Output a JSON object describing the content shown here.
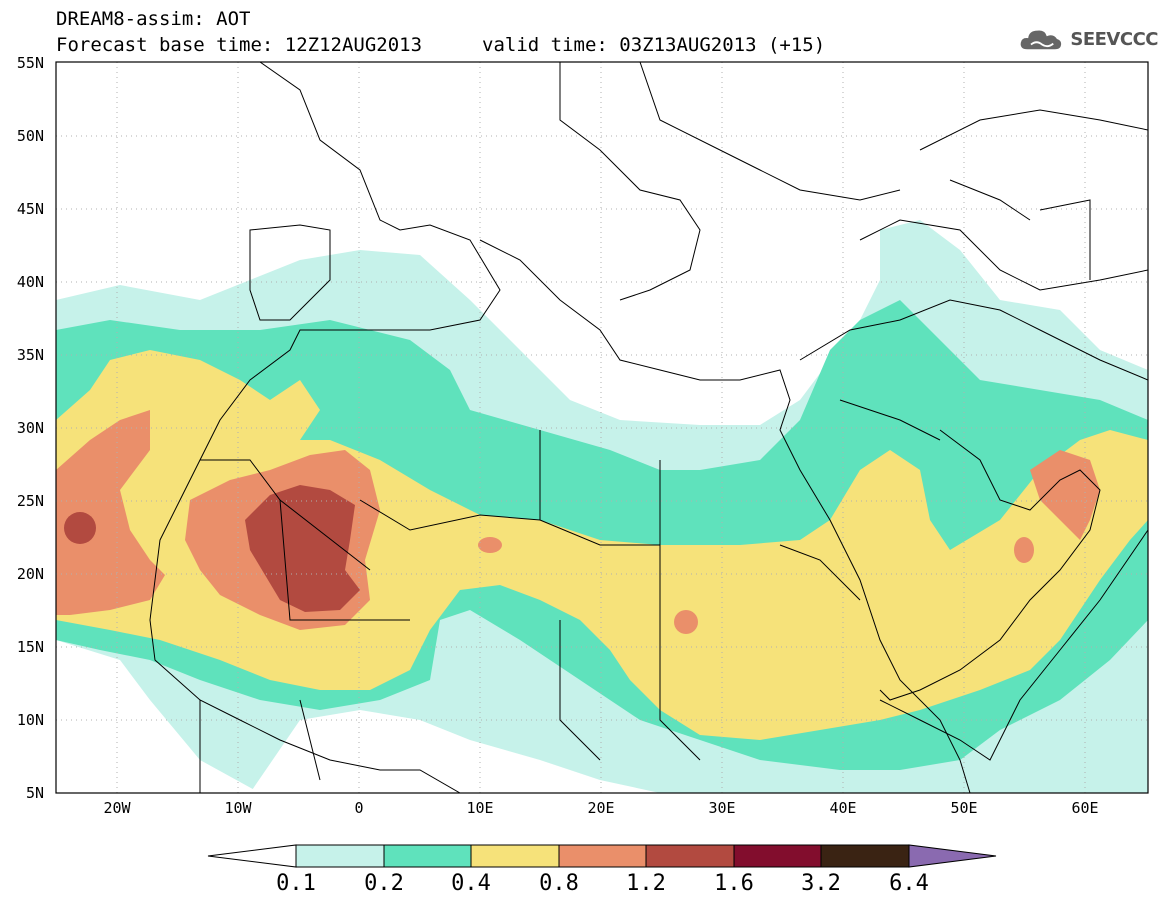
{
  "header": {
    "title": "DREAM8-assim: AOT",
    "base_time": "Forecast base time: 12Z12AUG2013",
    "valid_time": "valid time: 03Z13AUG2013 (+15)"
  },
  "logo": {
    "text": "SEEVCCC",
    "icon": "cloud-icon"
  },
  "map": {
    "lat_labels": [
      "55N",
      "50N",
      "45N",
      "40N",
      "35N",
      "30N",
      "25N",
      "20N",
      "15N",
      "10N",
      "5N"
    ],
    "lon_labels": [
      "20W",
      "10W",
      "0",
      "10E",
      "20E",
      "30E",
      "40E",
      "50E",
      "60E"
    ],
    "lat_range": [
      5,
      55
    ],
    "lon_range": [
      -25,
      65
    ],
    "grid": true
  },
  "colorbar": {
    "labels": [
      "0.1",
      "0.2",
      "0.4",
      "0.8",
      "1.2",
      "1.6",
      "3.2",
      "6.4"
    ],
    "colors": [
      "#c6f2ea",
      "#5fe2bc",
      "#f6e27a",
      "#ea8f6a",
      "#b24a40",
      "#820d2d",
      "#3a2313",
      "#8a6ab0"
    ]
  }
}
